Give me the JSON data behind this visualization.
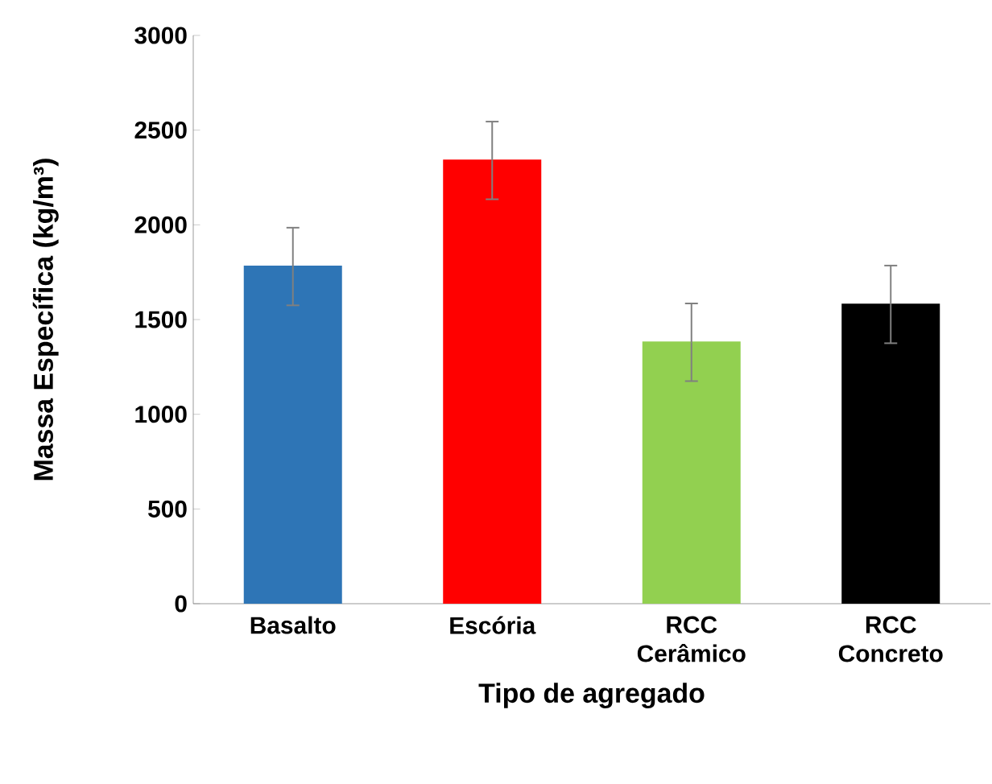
{
  "chart_data": {
    "type": "bar",
    "xlabel": "Tipo de agregado",
    "ylabel": "Massa Específica (kg/m³)",
    "categories": [
      "Basalto",
      "Escória",
      "RCC Cerâmico",
      "RCC Concreto"
    ],
    "values": [
      1780,
      2340,
      1380,
      1580
    ],
    "errors": [
      205,
      205,
      205,
      205
    ],
    "colors": [
      "#2e75b6",
      "#ff0000",
      "#92d050",
      "#000000"
    ],
    "ylim": [
      0,
      3000
    ],
    "yticks": [
      0,
      500,
      1000,
      1500,
      2000,
      2500,
      3000
    ],
    "grid": false
  }
}
